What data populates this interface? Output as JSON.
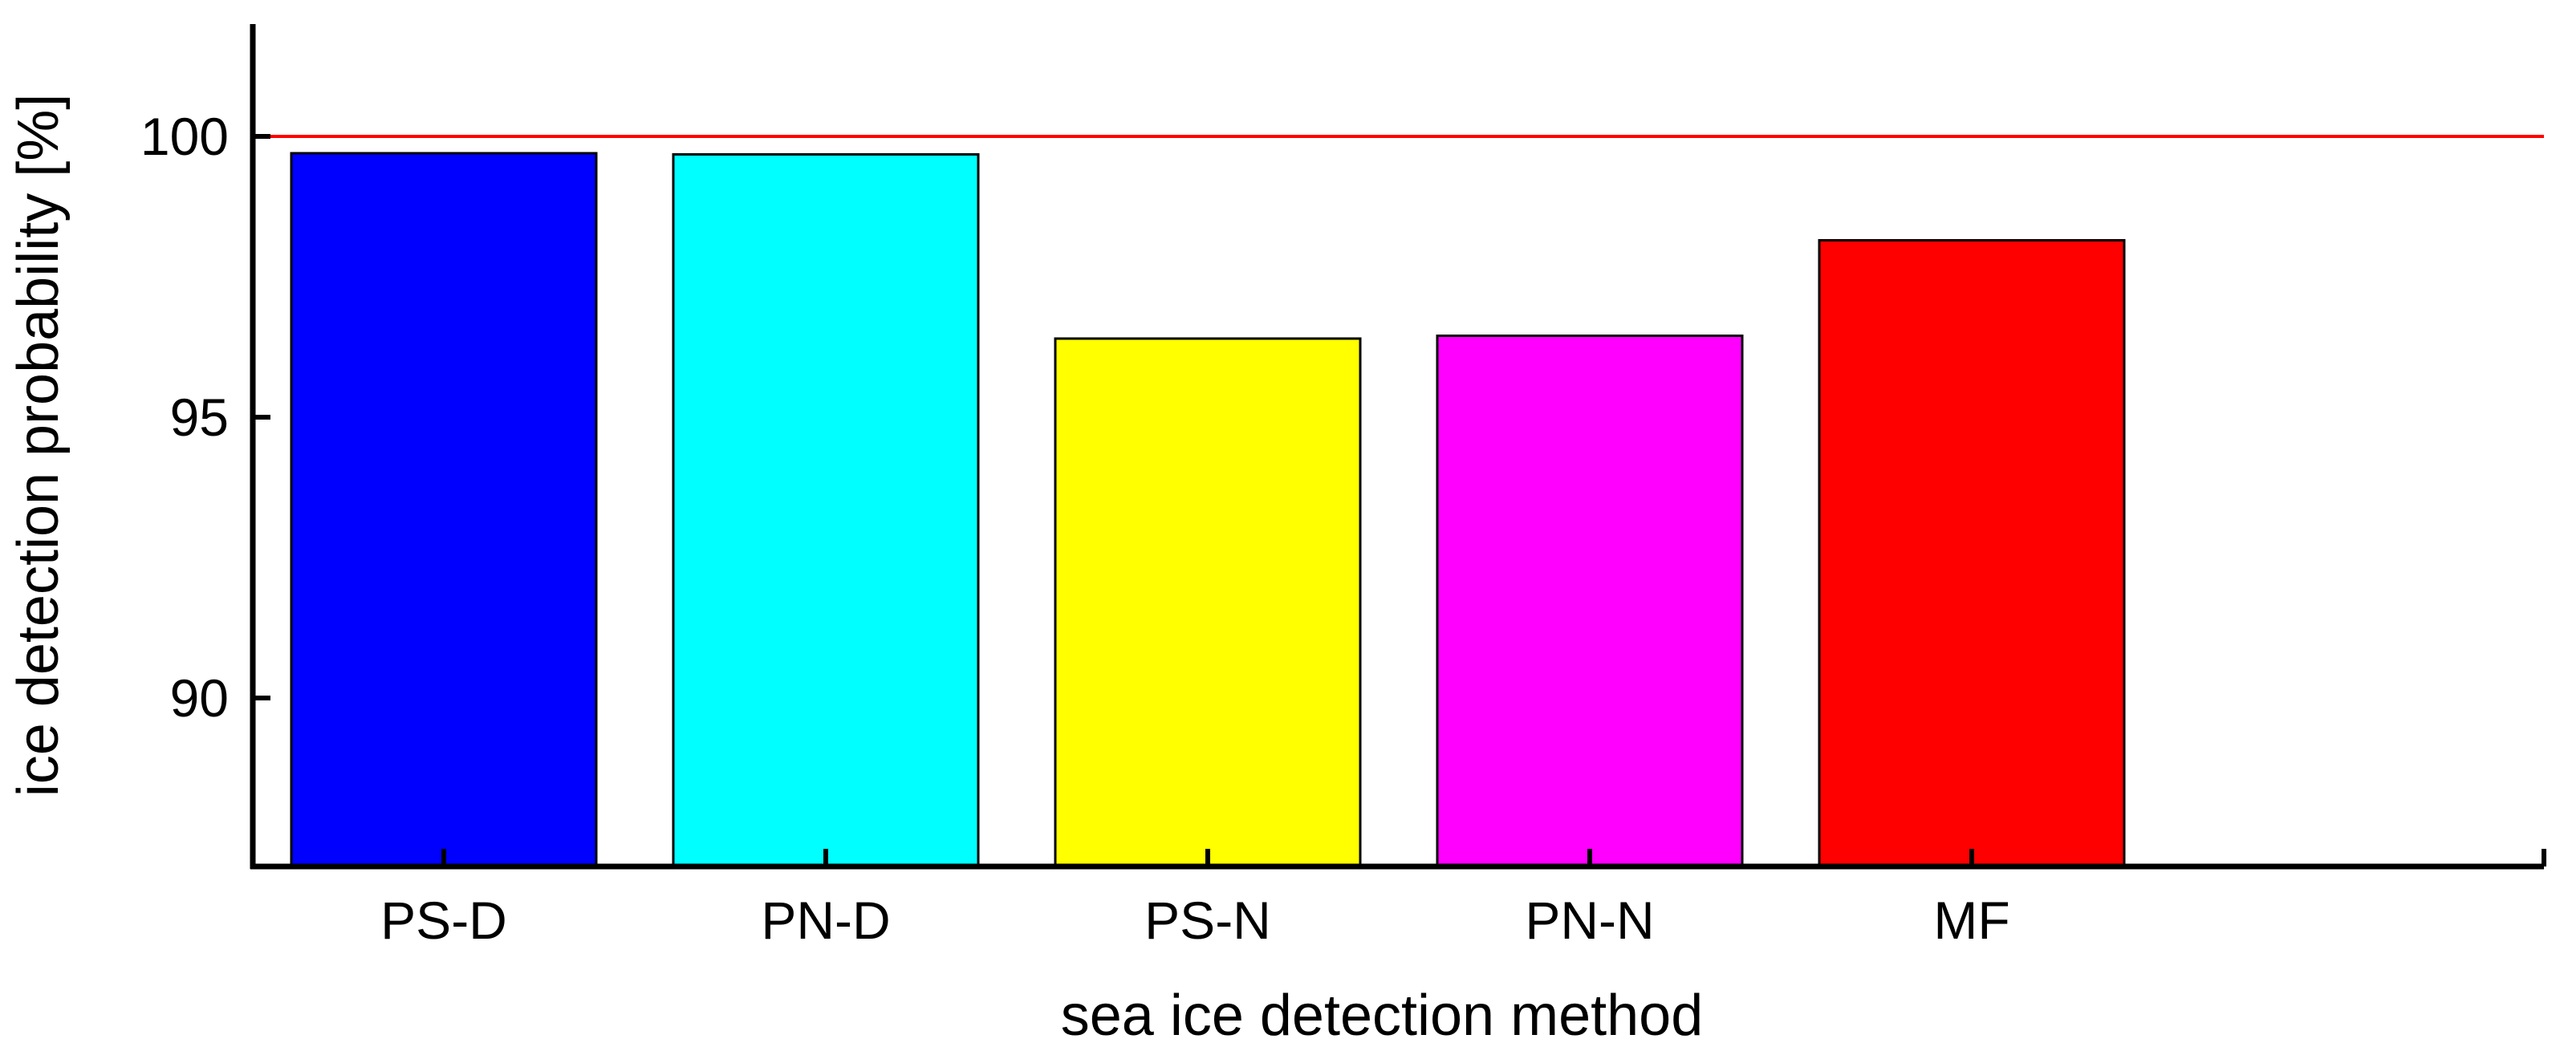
{
  "chart_data": {
    "type": "bar",
    "title": "",
    "xlabel": "sea ice detection method",
    "ylabel": "ice detection probability [%]",
    "categories": [
      "PS-D",
      "PN-D",
      "PS-N",
      "PN-N",
      "MF"
    ],
    "values": [
      99.7,
      99.68,
      96.4,
      96.45,
      98.15
    ],
    "bar_colors": [
      "#0000ff",
      "#00ffff",
      "#ffff00",
      "#ff00ff",
      "#ff0000"
    ],
    "ylim": [
      87,
      102
    ],
    "yticks": [
      90,
      95,
      100
    ],
    "ytick_labels": [
      "90",
      "95",
      "100"
    ],
    "reference_line": {
      "y": 100,
      "color": "#ff0000"
    },
    "grid": false,
    "legend": "none"
  }
}
